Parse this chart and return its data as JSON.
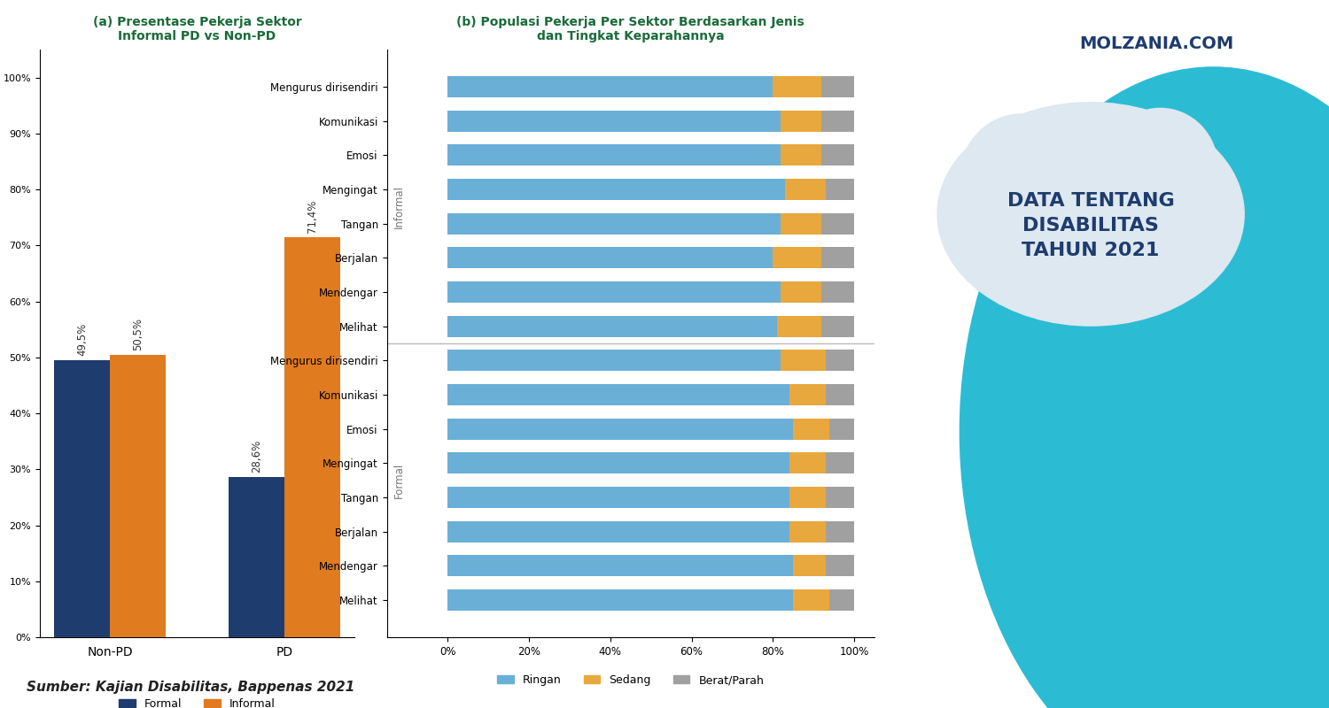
{
  "title_a": "(a) Presentase Pekerja Sektor\nInformal PD vs Non-PD",
  "title_b": "(b) Populasi Pekerja Per Sektor Berdasarkan Jenis\ndan Tingkat Keparahannya",
  "bar_a_categories": [
    "Non-PD",
    "PD"
  ],
  "bar_a_formal": [
    49.5,
    28.6
  ],
  "bar_a_informal": [
    50.5,
    71.4
  ],
  "bar_a_labels_formal": [
    "49,5%",
    "28,6%"
  ],
  "bar_a_labels_informal": [
    "50,5%",
    "71,4%"
  ],
  "color_formal": "#1f3c6e",
  "color_informal": "#e07b20",
  "color_ringan": "#6aafd6",
  "color_sedang": "#e8a83e",
  "color_berat": "#a0a0a0",
  "informal_categories": [
    "Mengurus dirisendiri",
    "Komunikasi",
    "Emosi",
    "Mengingat",
    "Tangan",
    "Berjalan",
    "Mendengar",
    "Melihat"
  ],
  "formal_categories": [
    "Mengurus dirisendiri",
    "Komunikasi",
    "Emosi",
    "Mengingat",
    "Tangan",
    "Berjalan",
    "Mendengar",
    "Melihat"
  ],
  "informal_ringan": [
    80,
    82,
    82,
    83,
    82,
    80,
    82,
    81
  ],
  "informal_sedang": [
    12,
    10,
    10,
    10,
    10,
    12,
    10,
    11
  ],
  "informal_berat": [
    8,
    8,
    8,
    7,
    8,
    8,
    8,
    8
  ],
  "formal_ringan": [
    82,
    84,
    85,
    84,
    84,
    84,
    85,
    85
  ],
  "formal_sedang": [
    11,
    9,
    9,
    9,
    9,
    9,
    8,
    9
  ],
  "formal_berat": [
    7,
    7,
    6,
    7,
    7,
    7,
    7,
    6
  ],
  "legend_ringan": "Ringan",
  "legend_sedang": "Sedang",
  "legend_berat": "Berat/Parah",
  "source_text": "Sumber: Kajian Disabilitas, Bappenas 2021",
  "main_title": "DATA TENTANG\nDISABILITAS\nTAHUN 2021",
  "brand": "MOLZANIA.COM",
  "bg_color": "#ffffff",
  "title_color": "#1a6b3a",
  "brand_color": "#1f3c6e",
  "teal_color": "#2bbcd4",
  "section_label_color": "#777777"
}
